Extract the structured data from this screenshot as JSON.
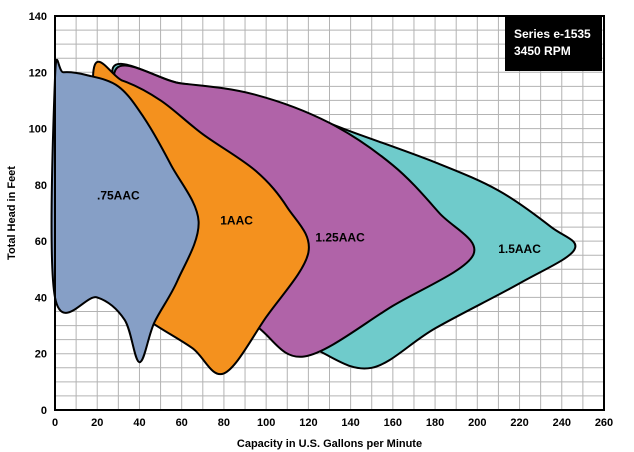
{
  "chart_data": {
    "type": "area",
    "xlabel": "Capacity in U.S. Gallons per Minute",
    "ylabel": "Total Head in Feet",
    "xlim": [
      0,
      260
    ],
    "ylim": [
      0,
      140
    ],
    "xticks": [
      "0",
      "20",
      "40",
      "60",
      "80",
      "100",
      "120",
      "140",
      "160",
      "180",
      "200",
      "220",
      "240",
      "260"
    ],
    "yticks": [
      "0",
      "20",
      "40",
      "60",
      "80",
      "100",
      "120",
      "140"
    ],
    "grid": true,
    "annotation": {
      "line1": "Series e-1535",
      "line2": "3450 RPM",
      "placement": "top-right"
    },
    "series": [
      {
        "name": "1.5AAC",
        "color": "#6fcbcb",
        "label_at": [
          220,
          57
        ],
        "boundary": [
          [
            28,
            117
          ],
          [
            60,
            116
          ],
          [
            100,
            110
          ],
          [
            140,
            99
          ],
          [
            180,
            88
          ],
          [
            210,
            78
          ],
          [
            235,
            65
          ],
          [
            246,
            57
          ],
          [
            220,
            45
          ],
          [
            180,
            29
          ],
          [
            150,
            15
          ],
          [
            125,
            21
          ],
          [
            95,
            35
          ]
        ]
      },
      {
        "name": "1.25AAC",
        "color": "#b063a8",
        "label_at": [
          135,
          61
        ],
        "boundary": [
          [
            28,
            117
          ],
          [
            60,
            116
          ],
          [
            95,
            112
          ],
          [
            130,
            102
          ],
          [
            160,
            87
          ],
          [
            182,
            70
          ],
          [
            198,
            55
          ],
          [
            160,
            37
          ],
          [
            118,
            19
          ],
          [
            95,
            30
          ],
          [
            70,
            42
          ]
        ]
      },
      {
        "name": "1AAC",
        "color": "#f4911e",
        "label_at": [
          86,
          67
        ],
        "boundary": [
          [
            18,
            118
          ],
          [
            32,
            117
          ],
          [
            50,
            110
          ],
          [
            70,
            98
          ],
          [
            95,
            85
          ],
          [
            110,
            72
          ],
          [
            120,
            56
          ],
          [
            100,
            33
          ],
          [
            80,
            13
          ],
          [
            65,
            22
          ],
          [
            46,
            31
          ],
          [
            30,
            40
          ]
        ]
      },
      {
        "name": ".75AAC",
        "color": "#869fc6",
        "label_at": [
          30,
          76
        ],
        "boundary": [
          [
            0,
            118
          ],
          [
            4,
            120
          ],
          [
            15,
            119
          ],
          [
            30,
            115
          ],
          [
            42,
            104
          ],
          [
            55,
            87
          ],
          [
            68,
            67
          ],
          [
            58,
            46
          ],
          [
            47,
            31
          ],
          [
            40,
            17
          ],
          [
            33,
            32
          ],
          [
            20,
            40
          ],
          [
            0,
            40
          ]
        ]
      }
    ]
  }
}
